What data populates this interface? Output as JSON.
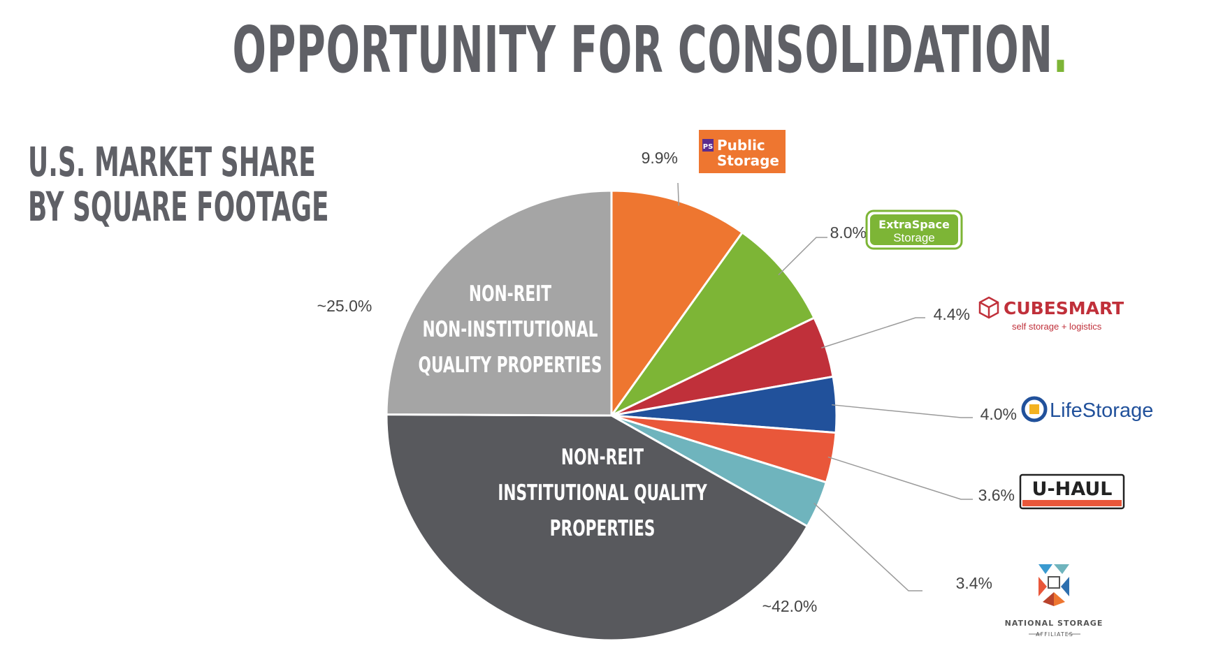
{
  "page": {
    "title": "OPPORTUNITY FOR CONSOLIDATION",
    "title_dot": ".",
    "subtitle_line1": "U.S. MARKET SHARE",
    "subtitle_line2": "BY SQUARE FOOTAGE"
  },
  "chart_data": {
    "type": "pie",
    "title": "U.S. MARKET SHARE BY SQUARE FOOTAGE",
    "legend": "none",
    "slices": [
      {
        "label": "Public Storage",
        "value": 9.9,
        "display": "9.9%",
        "color": "#ee7630",
        "logo": "public-storage-logo"
      },
      {
        "label": "Extra Space Storage",
        "value": 8.0,
        "display": "8.0%",
        "color": "#7db536",
        "logo": "extra-space-storage-logo"
      },
      {
        "label": "CubeSmart",
        "value": 4.4,
        "display": "4.4%",
        "color": "#c0303a",
        "logo": "cubesmart-logo"
      },
      {
        "label": "Life Storage",
        "value": 4.0,
        "display": "4.0%",
        "color": "#21519b",
        "logo": "life-storage-logo"
      },
      {
        "label": "U-Haul",
        "value": 3.6,
        "display": "3.6%",
        "color": "#e9573a",
        "logo": "uhaul-logo"
      },
      {
        "label": "National Storage Affiliates",
        "value": 3.4,
        "display": "3.4%",
        "color": "#6fb4bd",
        "logo": "national-storage-affiliates-logo"
      },
      {
        "label": "NON-REIT INSTITUTIONAL QUALITY PROPERTIES",
        "value": 42.0,
        "display": "~42.0%",
        "color": "#58595d",
        "inner_lines": [
          "NON-REIT",
          "INSTITUTIONAL QUALITY",
          "PROPERTIES"
        ]
      },
      {
        "label": "NON-REIT NON-INSTITUTIONAL QUALITY PROPERTIES",
        "value": 25.0,
        "display": "~25.0%",
        "color": "#a5a5a5",
        "inner_lines": [
          "NON-REIT",
          "NON-INSTITUTIONAL",
          "QUALITY PROPERTIES"
        ]
      }
    ]
  },
  "logos": {
    "public_storage": {
      "line1": "Public",
      "line2": "Storage",
      "badge": "PS"
    },
    "extra_space": {
      "line1": "ExtraSpace",
      "line2": "Storage"
    },
    "cubesmart": {
      "name": "CUBESMART",
      "tagline": "self storage + logistics"
    },
    "life_storage": {
      "name": "LifeStorage"
    },
    "uhaul": {
      "name": "U-HAUL"
    },
    "nsa": {
      "line1": "NATIONAL STORAGE",
      "line2": "AFFILIATES"
    }
  }
}
